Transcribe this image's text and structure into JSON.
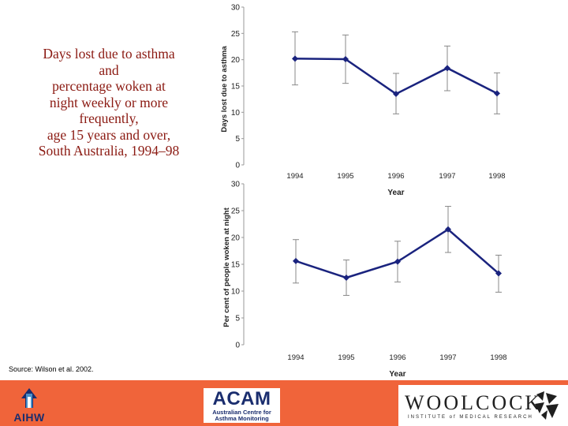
{
  "title_lines": [
    "Days lost due to asthma",
    "and",
    "percentage woken at",
    "night weekly or more",
    "frequently,",
    "age 15 years and over,",
    "South Australia, 1994–98"
  ],
  "source": "Source: Wilson et al. 2002.",
  "logos": {
    "aihw": "AIHW",
    "acam_main": "ACAM",
    "acam_sub_1": "Australian Centre for",
    "acam_sub_2": "Asthma Monitoring",
    "woolcock_main": "WOOLCOCK",
    "woolcock_sub": "INSTITUTE of MEDICAL RESEARCH"
  },
  "colors": {
    "series": "#1a237e",
    "error_bar": "#888888",
    "title": "#8b1a12",
    "footer": "#f0643a"
  },
  "chart_data": [
    {
      "type": "line",
      "title": "",
      "xlabel": "Year",
      "ylabel": "Days lost due to asthma",
      "categories": [
        "1994",
        "1995",
        "1996",
        "1997",
        "1998"
      ],
      "values": [
        20.2,
        20.1,
        13.5,
        18.4,
        13.6
      ],
      "error_low": [
        15.2,
        15.5,
        9.7,
        14.1,
        9.7
      ],
      "error_high": [
        25.3,
        24.7,
        17.4,
        22.6,
        17.5
      ],
      "ylim": [
        0,
        30
      ],
      "yticks": [
        "0",
        "5",
        "10",
        "15",
        "20",
        "25",
        "30"
      ]
    },
    {
      "type": "line",
      "title": "",
      "xlabel": "Year",
      "ylabel": "Per cent of people woken at night",
      "categories": [
        "1994",
        "1995",
        "1996",
        "1997",
        "1998"
      ],
      "values": [
        15.6,
        12.5,
        15.5,
        21.5,
        13.3
      ],
      "error_low": [
        11.5,
        9.2,
        11.7,
        17.2,
        9.8
      ],
      "error_high": [
        19.6,
        15.8,
        19.3,
        25.8,
        16.7
      ],
      "ylim": [
        0,
        30
      ],
      "yticks": [
        "0",
        "5",
        "10",
        "15",
        "20",
        "25",
        "30"
      ]
    }
  ]
}
